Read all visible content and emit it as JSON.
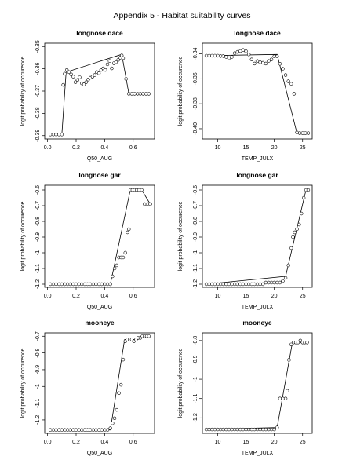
{
  "page": {
    "title": "Appendix 5 - Habitat suitability curves"
  },
  "chart_data": [
    {
      "type": "scatter",
      "title": "longnose dace",
      "xlabel": "Q50_AUG",
      "ylabel": "logit probability of occurence",
      "xlim": [
        -0.02,
        0.75
      ],
      "ylim": [
        -0.3915,
        -0.3485
      ],
      "xticks": [
        0.0,
        0.2,
        0.4,
        0.6
      ],
      "yticks": [
        -0.39,
        -0.38,
        -0.37,
        -0.36,
        -0.35
      ],
      "xtick_labels": [
        "0.0",
        "0.2",
        "0.4",
        "0.6"
      ],
      "ytick_labels": [
        "-0.39",
        "-0.38",
        "-0.37",
        "-0.36",
        "-0.35"
      ],
      "points": [
        [
          0.02,
          -0.3895
        ],
        [
          0.04,
          -0.3895
        ],
        [
          0.06,
          -0.3895
        ],
        [
          0.08,
          -0.3895
        ],
        [
          0.1,
          -0.3895
        ],
        [
          0.11,
          -0.3672
        ],
        [
          0.12,
          -0.3622
        ],
        [
          0.135,
          -0.3605
        ],
        [
          0.15,
          -0.3615
        ],
        [
          0.165,
          -0.3625
        ],
        [
          0.18,
          -0.3635
        ],
        [
          0.195,
          -0.366
        ],
        [
          0.21,
          -0.365
        ],
        [
          0.225,
          -0.3638
        ],
        [
          0.24,
          -0.3665
        ],
        [
          0.255,
          -0.367
        ],
        [
          0.27,
          -0.366
        ],
        [
          0.285,
          -0.3648
        ],
        [
          0.3,
          -0.364
        ],
        [
          0.315,
          -0.3635
        ],
        [
          0.33,
          -0.3628
        ],
        [
          0.345,
          -0.3615
        ],
        [
          0.36,
          -0.362
        ],
        [
          0.375,
          -0.3605
        ],
        [
          0.39,
          -0.3598
        ],
        [
          0.405,
          -0.3605
        ],
        [
          0.42,
          -0.358
        ],
        [
          0.435,
          -0.3565
        ],
        [
          0.45,
          -0.3598
        ],
        [
          0.465,
          -0.3575
        ],
        [
          0.48,
          -0.357
        ],
        [
          0.495,
          -0.356
        ],
        [
          0.51,
          -0.355
        ],
        [
          0.52,
          -0.354
        ],
        [
          0.53,
          -0.3552
        ],
        [
          0.55,
          -0.3645
        ],
        [
          0.57,
          -0.3712
        ],
        [
          0.59,
          -0.3712
        ],
        [
          0.61,
          -0.3712
        ],
        [
          0.63,
          -0.3712
        ],
        [
          0.65,
          -0.3712
        ],
        [
          0.67,
          -0.3712
        ],
        [
          0.69,
          -0.3712
        ],
        [
          0.71,
          -0.3712
        ]
      ],
      "line": [
        [
          0.1,
          -0.3895
        ],
        [
          0.13,
          -0.3615
        ],
        [
          0.52,
          -0.3535
        ],
        [
          0.57,
          -0.3712
        ],
        [
          0.71,
          -0.3712
        ]
      ]
    },
    {
      "type": "scatter",
      "title": "longnose dace",
      "xlabel": "TEMP_JULX",
      "ylabel": "logit probability of occurence",
      "xlim": [
        7.3,
        26.7
      ],
      "ylim": [
        -0.4082,
        -0.3315
      ],
      "xticks": [
        10,
        15,
        20,
        25
      ],
      "yticks": [
        -0.4,
        -0.38,
        -0.36,
        -0.34
      ],
      "xtick_labels": [
        "10",
        "15",
        "20",
        "25"
      ],
      "ytick_labels": [
        "-0.40",
        "-0.38",
        "-0.36",
        "-0.34"
      ],
      "points": [
        [
          8,
          -0.3415
        ],
        [
          8.5,
          -0.3415
        ],
        [
          9,
          -0.3415
        ],
        [
          9.5,
          -0.3415
        ],
        [
          10,
          -0.3415
        ],
        [
          10.5,
          -0.3418
        ],
        [
          11,
          -0.3418
        ],
        [
          11.5,
          -0.3425
        ],
        [
          12,
          -0.3435
        ],
        [
          12.5,
          -0.3425
        ],
        [
          13,
          -0.3395
        ],
        [
          13.5,
          -0.3385
        ],
        [
          14,
          -0.3378
        ],
        [
          14.5,
          -0.337
        ],
        [
          15,
          -0.338
        ],
        [
          15.5,
          -0.3405
        ],
        [
          16,
          -0.3445
        ],
        [
          16.5,
          -0.3478
        ],
        [
          17,
          -0.3458
        ],
        [
          17.5,
          -0.3468
        ],
        [
          18,
          -0.3472
        ],
        [
          18.5,
          -0.3478
        ],
        [
          19,
          -0.3458
        ],
        [
          19.5,
          -0.3445
        ],
        [
          20,
          -0.342
        ],
        [
          20.5,
          -0.342
        ],
        [
          21,
          -0.348
        ],
        [
          21.5,
          -0.352
        ],
        [
          22,
          -0.357
        ],
        [
          22.5,
          -0.362
        ],
        [
          23,
          -0.364
        ],
        [
          23.5,
          -0.372
        ],
        [
          24,
          -0.403
        ],
        [
          24.5,
          -0.4035
        ],
        [
          25,
          -0.4035
        ],
        [
          25.5,
          -0.4035
        ],
        [
          26,
          -0.4035
        ]
      ],
      "line": [
        [
          8,
          -0.3415
        ],
        [
          20.5,
          -0.3405
        ],
        [
          24,
          -0.4035
        ],
        [
          26,
          -0.4035
        ]
      ]
    },
    {
      "type": "scatter",
      "title": "longnose gar",
      "xlabel": "Q50_AUG",
      "ylabel": "logit probability of occurence",
      "xlim": [
        -0.02,
        0.75
      ],
      "ylim": [
        -1.22,
        -0.57
      ],
      "xticks": [
        0.0,
        0.2,
        0.4,
        0.6
      ],
      "yticks": [
        -1.2,
        -1.1,
        -1.0,
        -0.9,
        -0.8,
        -0.7,
        -0.6
      ],
      "xtick_labels": [
        "0.0",
        "0.2",
        "0.4",
        "0.6"
      ],
      "ytick_labels": [
        "-1.2",
        "-1.1",
        "-1",
        "-0.9",
        "-0.8",
        "-0.7",
        "-0.6"
      ],
      "points": [
        [
          0.02,
          -1.2
        ],
        [
          0.04,
          -1.2
        ],
        [
          0.06,
          -1.2
        ],
        [
          0.08,
          -1.2
        ],
        [
          0.1,
          -1.2
        ],
        [
          0.12,
          -1.2
        ],
        [
          0.14,
          -1.2
        ],
        [
          0.16,
          -1.2
        ],
        [
          0.18,
          -1.2
        ],
        [
          0.2,
          -1.2
        ],
        [
          0.22,
          -1.2
        ],
        [
          0.24,
          -1.2
        ],
        [
          0.26,
          -1.2
        ],
        [
          0.28,
          -1.2
        ],
        [
          0.3,
          -1.2
        ],
        [
          0.32,
          -1.2
        ],
        [
          0.34,
          -1.2
        ],
        [
          0.36,
          -1.2
        ],
        [
          0.38,
          -1.2
        ],
        [
          0.4,
          -1.2
        ],
        [
          0.42,
          -1.2
        ],
        [
          0.44,
          -1.2
        ],
        [
          0.455,
          -1.15
        ],
        [
          0.47,
          -1.1
        ],
        [
          0.485,
          -1.08
        ],
        [
          0.5,
          -1.03
        ],
        [
          0.515,
          -1.03
        ],
        [
          0.53,
          -1.03
        ],
        [
          0.545,
          -1.0
        ],
        [
          0.56,
          -0.87
        ],
        [
          0.57,
          -0.85
        ],
        [
          0.58,
          -0.6
        ],
        [
          0.595,
          -0.6
        ],
        [
          0.61,
          -0.6
        ],
        [
          0.625,
          -0.6
        ],
        [
          0.64,
          -0.6
        ],
        [
          0.66,
          -0.6
        ],
        [
          0.68,
          -0.69
        ],
        [
          0.7,
          -0.69
        ],
        [
          0.72,
          -0.69
        ]
      ],
      "line": [
        [
          0.02,
          -1.2
        ],
        [
          0.44,
          -1.2
        ],
        [
          0.58,
          -0.6
        ],
        [
          0.66,
          -0.6
        ],
        [
          0.72,
          -0.69
        ]
      ]
    },
    {
      "type": "scatter",
      "title": "longnose gar",
      "xlabel": "TEMP_JULX",
      "ylabel": "logit probability of occurence",
      "xlim": [
        7.3,
        26.7
      ],
      "ylim": [
        -1.22,
        -0.57
      ],
      "xticks": [
        10,
        15,
        20,
        25
      ],
      "yticks": [
        -1.2,
        -1.1,
        -1.0,
        -0.9,
        -0.8,
        -0.7,
        -0.6
      ],
      "xtick_labels": [
        "10",
        "15",
        "20",
        "25"
      ],
      "ytick_labels": [
        "-1.2",
        "-1.1",
        "-1",
        "-0.9",
        "-0.8",
        "-0.7",
        "-0.6"
      ],
      "points": [
        [
          8,
          -1.2
        ],
        [
          8.5,
          -1.2
        ],
        [
          9,
          -1.2
        ],
        [
          9.5,
          -1.2
        ],
        [
          10,
          -1.2
        ],
        [
          10.5,
          -1.2
        ],
        [
          11,
          -1.2
        ],
        [
          11.5,
          -1.2
        ],
        [
          12,
          -1.2
        ],
        [
          12.5,
          -1.2
        ],
        [
          13,
          -1.2
        ],
        [
          13.5,
          -1.2
        ],
        [
          14,
          -1.2
        ],
        [
          14.5,
          -1.2
        ],
        [
          15,
          -1.2
        ],
        [
          15.5,
          -1.2
        ],
        [
          16,
          -1.2
        ],
        [
          16.5,
          -1.2
        ],
        [
          17,
          -1.2
        ],
        [
          17.5,
          -1.2
        ],
        [
          18,
          -1.2
        ],
        [
          18.5,
          -1.19
        ],
        [
          19,
          -1.19
        ],
        [
          19.5,
          -1.19
        ],
        [
          20,
          -1.19
        ],
        [
          20.5,
          -1.19
        ],
        [
          21,
          -1.19
        ],
        [
          21.5,
          -1.18
        ],
        [
          22,
          -1.16
        ],
        [
          22.5,
          -1.08
        ],
        [
          23,
          -0.97
        ],
        [
          23.3,
          -0.9
        ],
        [
          23.6,
          -0.87
        ],
        [
          24,
          -0.85
        ],
        [
          24.4,
          -0.82
        ],
        [
          24.8,
          -0.75
        ],
        [
          25.2,
          -0.65
        ],
        [
          25.6,
          -0.6
        ],
        [
          26,
          -0.6
        ]
      ],
      "line": [
        [
          8,
          -1.2
        ],
        [
          22,
          -1.15
        ],
        [
          25.6,
          -0.6
        ],
        [
          26,
          -0.6
        ]
      ]
    },
    {
      "type": "scatter",
      "title": "mooneye",
      "xlabel": "Q50_AUG",
      "ylabel": "logit probability of occurence",
      "xlim": [
        -0.02,
        0.75
      ],
      "ylim": [
        -1.28,
        -0.68
      ],
      "xticks": [
        0.0,
        0.2,
        0.4,
        0.6
      ],
      "yticks": [
        -1.2,
        -1.1,
        -1.0,
        -0.9,
        -0.8,
        -0.7
      ],
      "xtick_labels": [
        "0.0",
        "0.2",
        "0.4",
        "0.6"
      ],
      "ytick_labels": [
        "-1.2",
        "-1.1",
        "-1",
        "-0.9",
        "-0.8",
        "-0.7"
      ],
      "points": [
        [
          0.02,
          -1.26
        ],
        [
          0.04,
          -1.26
        ],
        [
          0.06,
          -1.26
        ],
        [
          0.08,
          -1.26
        ],
        [
          0.1,
          -1.26
        ],
        [
          0.12,
          -1.26
        ],
        [
          0.14,
          -1.26
        ],
        [
          0.16,
          -1.26
        ],
        [
          0.18,
          -1.26
        ],
        [
          0.2,
          -1.26
        ],
        [
          0.22,
          -1.26
        ],
        [
          0.24,
          -1.26
        ],
        [
          0.26,
          -1.26
        ],
        [
          0.28,
          -1.26
        ],
        [
          0.3,
          -1.26
        ],
        [
          0.32,
          -1.26
        ],
        [
          0.34,
          -1.26
        ],
        [
          0.36,
          -1.26
        ],
        [
          0.38,
          -1.26
        ],
        [
          0.4,
          -1.26
        ],
        [
          0.42,
          -1.26
        ],
        [
          0.44,
          -1.25
        ],
        [
          0.455,
          -1.22
        ],
        [
          0.47,
          -1.19
        ],
        [
          0.485,
          -1.14
        ],
        [
          0.5,
          -1.04
        ],
        [
          0.515,
          -0.99
        ],
        [
          0.53,
          -0.84
        ],
        [
          0.545,
          -0.73
        ],
        [
          0.56,
          -0.72
        ],
        [
          0.575,
          -0.72
        ],
        [
          0.59,
          -0.72
        ],
        [
          0.605,
          -0.73
        ],
        [
          0.62,
          -0.72
        ],
        [
          0.635,
          -0.71
        ],
        [
          0.65,
          -0.71
        ],
        [
          0.665,
          -0.7
        ],
        [
          0.68,
          -0.7
        ],
        [
          0.695,
          -0.7
        ],
        [
          0.71,
          -0.7
        ]
      ],
      "line": [
        [
          0.02,
          -1.26
        ],
        [
          0.44,
          -1.26
        ],
        [
          0.54,
          -0.72
        ],
        [
          0.62,
          -0.72
        ],
        [
          0.71,
          -0.7
        ]
      ]
    },
    {
      "type": "scatter",
      "title": "mooneye",
      "xlabel": "TEMP_JULX",
      "ylabel": "logit probability of occurence",
      "xlim": [
        7.3,
        26.7
      ],
      "ylim": [
        -1.28,
        -0.76
      ],
      "xticks": [
        10,
        15,
        20,
        25
      ],
      "yticks": [
        -1.2,
        -1.1,
        -1.0,
        -0.9,
        -0.8
      ],
      "xtick_labels": [
        "10",
        "15",
        "20",
        "25"
      ],
      "ytick_labels": [
        "-1.2",
        "-1.1",
        "-1",
        "-0.9",
        "-0.8"
      ],
      "points": [
        [
          8,
          -1.26
        ],
        [
          8.5,
          -1.26
        ],
        [
          9,
          -1.26
        ],
        [
          9.5,
          -1.26
        ],
        [
          10,
          -1.26
        ],
        [
          10.5,
          -1.26
        ],
        [
          11,
          -1.26
        ],
        [
          11.5,
          -1.26
        ],
        [
          12,
          -1.26
        ],
        [
          12.5,
          -1.26
        ],
        [
          13,
          -1.26
        ],
        [
          13.5,
          -1.26
        ],
        [
          14,
          -1.26
        ],
        [
          14.5,
          -1.26
        ],
        [
          15,
          -1.26
        ],
        [
          15.5,
          -1.26
        ],
        [
          16,
          -1.26
        ],
        [
          16.5,
          -1.26
        ],
        [
          17,
          -1.26
        ],
        [
          17.5,
          -1.26
        ],
        [
          18,
          -1.26
        ],
        [
          18.5,
          -1.26
        ],
        [
          19,
          -1.26
        ],
        [
          19.5,
          -1.26
        ],
        [
          20,
          -1.26
        ],
        [
          20.5,
          -1.25
        ],
        [
          21,
          -1.1
        ],
        [
          21.5,
          -1.1
        ],
        [
          22,
          -1.1
        ],
        [
          22.3,
          -1.06
        ],
        [
          22.6,
          -0.9
        ],
        [
          23,
          -0.82
        ],
        [
          23.4,
          -0.81
        ],
        [
          23.8,
          -0.81
        ],
        [
          24.2,
          -0.81
        ],
        [
          24.6,
          -0.8
        ],
        [
          25,
          -0.81
        ],
        [
          25.4,
          -0.81
        ],
        [
          25.8,
          -0.81
        ]
      ],
      "line": [
        [
          8,
          -1.26
        ],
        [
          20.5,
          -1.25
        ],
        [
          23.2,
          -0.81
        ],
        [
          25.8,
          -0.81
        ]
      ]
    }
  ]
}
